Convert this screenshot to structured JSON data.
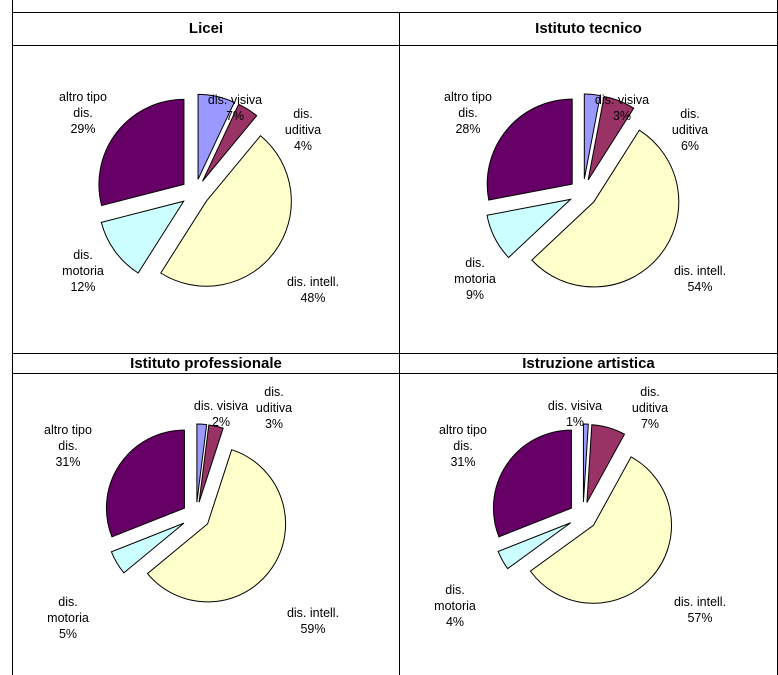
{
  "colors": {
    "dis_visiva": "#9999ff",
    "dis_uditiva": "#993366",
    "dis_intell": "#ffffcc",
    "dis_motoria": "#ccffff",
    "altro_tipo": "#660066"
  },
  "chart_data": [
    {
      "type": "pie",
      "title": "Licei",
      "slices": [
        {
          "label": [
            "dis. visiva",
            "7%"
          ],
          "value": 7,
          "color": "#9999ff"
        },
        {
          "label": [
            "dis.",
            "uditiva",
            "4%"
          ],
          "value": 4,
          "color": "#993366"
        },
        {
          "label": [
            "dis. intell.",
            "48%"
          ],
          "value": 48,
          "color": "#ffffcc"
        },
        {
          "label": [
            "dis.",
            "motoria",
            "12%"
          ],
          "value": 12,
          "color": "#ccffff"
        },
        {
          "label": [
            "altro tipo",
            "dis.",
            "29%"
          ],
          "value": 29,
          "color": "#660066"
        }
      ]
    },
    {
      "type": "pie",
      "title": "Istituto tecnico",
      "slices": [
        {
          "label": [
            "dis. visiva",
            "3%"
          ],
          "value": 3,
          "color": "#9999ff"
        },
        {
          "label": [
            "dis.",
            "uditiva",
            "6%"
          ],
          "value": 6,
          "color": "#993366"
        },
        {
          "label": [
            "dis. intell.",
            "54%"
          ],
          "value": 54,
          "color": "#ffffcc"
        },
        {
          "label": [
            "dis.",
            "motoria",
            "9%"
          ],
          "value": 9,
          "color": "#ccffff"
        },
        {
          "label": [
            "altro tipo",
            "dis.",
            "28%"
          ],
          "value": 28,
          "color": "#660066"
        }
      ]
    },
    {
      "type": "pie",
      "title": "Istituto professionale",
      "slices": [
        {
          "label": [
            "dis. visiva",
            "2%"
          ],
          "value": 2,
          "color": "#9999ff"
        },
        {
          "label": [
            "dis.",
            "uditiva",
            "3%"
          ],
          "value": 3,
          "color": "#993366"
        },
        {
          "label": [
            "dis. intell.",
            "59%"
          ],
          "value": 59,
          "color": "#ffffcc"
        },
        {
          "label": [
            "dis.",
            "motoria",
            "5%"
          ],
          "value": 5,
          "color": "#ccffff"
        },
        {
          "label": [
            "altro tipo",
            "dis.",
            "31%"
          ],
          "value": 31,
          "color": "#660066"
        }
      ]
    },
    {
      "type": "pie",
      "title": "Istruzione artistica",
      "slices": [
        {
          "label": [
            "dis. visiva",
            "1%"
          ],
          "value": 1,
          "color": "#9999ff"
        },
        {
          "label": [
            "dis.",
            "uditiva",
            "7%"
          ],
          "value": 7,
          "color": "#993366"
        },
        {
          "label": [
            "dis. intell.",
            "57%"
          ],
          "value": 57,
          "color": "#ffffcc"
        },
        {
          "label": [
            "dis.",
            "motoria",
            "4%"
          ],
          "value": 4,
          "color": "#ccffff"
        },
        {
          "label": [
            "altro tipo",
            "dis.",
            "31%"
          ],
          "value": 31,
          "color": "#660066"
        }
      ]
    }
  ]
}
